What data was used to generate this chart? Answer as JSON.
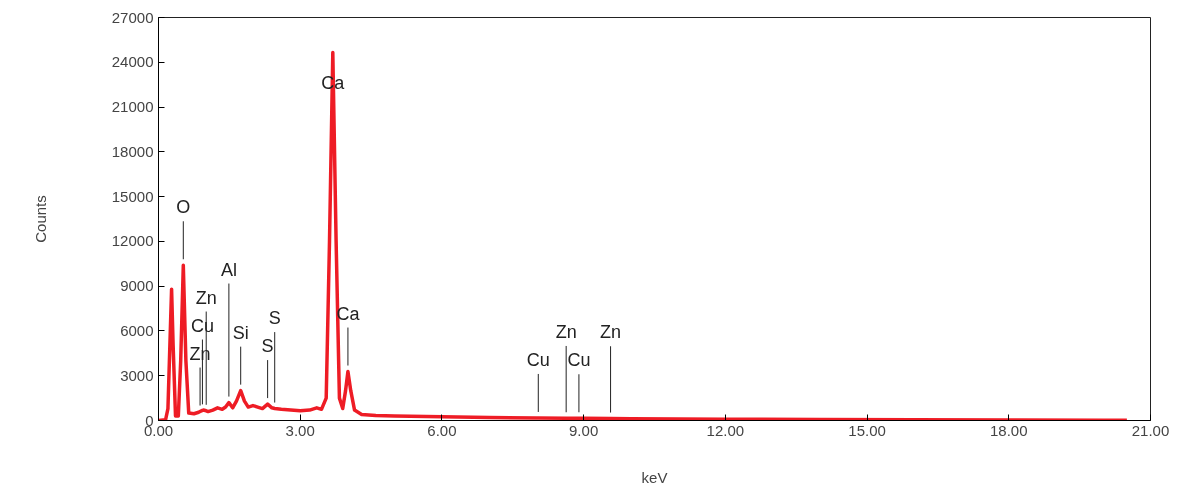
{
  "chart_data": {
    "type": "line",
    "xlabel": "keV",
    "ylabel": "Counts",
    "xlim": [
      0,
      21
    ],
    "ylim": [
      0,
      27000
    ],
    "xticks": [
      {
        "value": 0,
        "label": "0.00"
      },
      {
        "value": 3,
        "label": "3.00"
      },
      {
        "value": 6,
        "label": "6.00"
      },
      {
        "value": 9,
        "label": "9.00"
      },
      {
        "value": 12,
        "label": "12.00"
      },
      {
        "value": 15,
        "label": "15.00"
      },
      {
        "value": 18,
        "label": "18.00"
      },
      {
        "value": 21,
        "label": "21.00"
      }
    ],
    "yticks": [
      0,
      3000,
      6000,
      9000,
      12000,
      15000,
      18000,
      21000,
      24000,
      27000
    ],
    "grid": false,
    "marker": "none",
    "line_style": "solid",
    "series": [
      {
        "color": "#ee1c25",
        "x": [
          0.0,
          0.15,
          0.2,
          0.25,
          0.277,
          0.31,
          0.36,
          0.42,
          0.47,
          0.525,
          0.58,
          0.64,
          0.75,
          0.85,
          0.88,
          0.93,
          0.95,
          1.01,
          1.05,
          1.15,
          1.25,
          1.35,
          1.42,
          1.49,
          1.57,
          1.65,
          1.74,
          1.82,
          1.9,
          2.0,
          2.1,
          2.2,
          2.31,
          2.4,
          2.46,
          2.6,
          2.8,
          3.0,
          3.2,
          3.35,
          3.45,
          3.55,
          3.62,
          3.69,
          3.76,
          3.83,
          3.9,
          3.96,
          4.01,
          4.07,
          4.15,
          4.3,
          4.6,
          5.0,
          6.0,
          7.0,
          8.0,
          8.04,
          8.63,
          8.9,
          9.0,
          9.57,
          10.0,
          12.0,
          14.0,
          16.0,
          18.0,
          20.0,
          20.5
        ],
        "values": [
          0,
          50,
          800,
          6000,
          8800,
          5000,
          300,
          300,
          4000,
          10400,
          4000,
          500,
          450,
          550,
          600,
          680,
          700,
          650,
          600,
          700,
          850,
          750,
          900,
          1200,
          850,
          1300,
          2000,
          1300,
          900,
          1000,
          900,
          800,
          1100,
          850,
          800,
          750,
          700,
          650,
          700,
          850,
          750,
          1500,
          12000,
          24650,
          12000,
          1500,
          800,
          2000,
          3280,
          2000,
          700,
          400,
          330,
          300,
          250,
          200,
          170,
          170,
          150,
          150,
          150,
          130,
          120,
          90,
          70,
          50,
          30,
          20,
          10
        ]
      }
    ],
    "annotations": [
      {
        "text": "O",
        "x": 0.525,
        "y": 10400
      },
      {
        "text": "Zn",
        "x": 1.01,
        "y": 650
      },
      {
        "text": "Cu",
        "x": 0.93,
        "y": 680
      },
      {
        "text": "Zn",
        "x": 0.88,
        "y": 600
      },
      {
        "text": "Al",
        "x": 1.49,
        "y": 1200
      },
      {
        "text": "Si",
        "x": 1.74,
        "y": 2000
      },
      {
        "text": "S",
        "x": 2.46,
        "y": 800
      },
      {
        "text": "S",
        "x": 2.31,
        "y": 1100
      },
      {
        "text": "Ca",
        "x": 3.69,
        "y": 24650
      },
      {
        "text": "Ca",
        "x": 4.01,
        "y": 3280
      },
      {
        "text": "Cu",
        "x": 8.04,
        "y": 170
      },
      {
        "text": "Zn",
        "x": 8.63,
        "y": 150
      },
      {
        "text": "Cu",
        "x": 8.9,
        "y": 150
      },
      {
        "text": "Zn",
        "x": 9.57,
        "y": 130
      }
    ]
  }
}
